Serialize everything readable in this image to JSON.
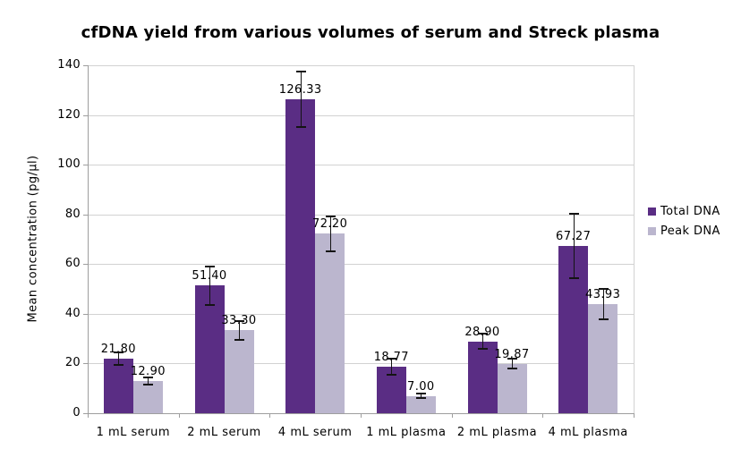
{
  "chart_data": {
    "type": "bar",
    "title": "cfDNA yield from various volumes of serum and Streck plasma",
    "xlabel": "",
    "ylabel": "Mean concentration (pg/µl)",
    "ylim": [
      0,
      140
    ],
    "yticks": [
      0,
      20,
      40,
      60,
      80,
      100,
      120,
      140
    ],
    "grid": "horizontal",
    "legend_position": "right",
    "background": "#FFFFFF",
    "grid_color": "#D2D2D2",
    "axis_color": "#9E9E9E",
    "error_bar_color": "#141414",
    "categories": [
      "1 mL serum",
      "2 mL serum",
      "4 mL serum",
      "1 mL plasma",
      "2 mL plasma",
      "4 mL plasma"
    ],
    "series": [
      {
        "name": "Total DNA",
        "color": "#5A2D84",
        "values": [
          21.8,
          51.4,
          126.33,
          18.77,
          28.9,
          67.27
        ],
        "value_labels": [
          "21.80",
          "51.40",
          "126.33",
          "18.77",
          "28.90",
          "67.27"
        ],
        "errors": [
          2.5,
          7.8,
          11.0,
          3.2,
          3.0,
          13.0
        ]
      },
      {
        "name": "Peak DNA",
        "color": "#BBB6CE",
        "values": [
          12.9,
          33.3,
          72.2,
          7.0,
          19.87,
          43.93
        ],
        "value_labels": [
          "12.90",
          "33.30",
          "72.20",
          "7.00",
          "19.87",
          "43.93"
        ],
        "errors": [
          1.4,
          3.7,
          7.0,
          0.9,
          2.0,
          6.0
        ]
      }
    ]
  }
}
